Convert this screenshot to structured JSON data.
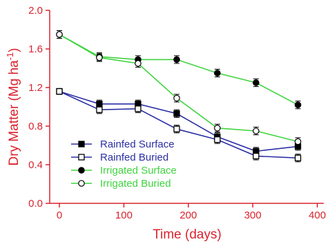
{
  "chart_data": {
    "type": "line",
    "xlabel": "Time (days)",
    "ylabel": "Dry Matter (Mg ha-1)",
    "ylabel_parts": {
      "main": "Dry Matter (Mg ha",
      "sup": "-1",
      "close": ")"
    },
    "xlim": [
      -15,
      410
    ],
    "ylim": [
      0.0,
      2.0
    ],
    "x_ticks": [
      0,
      100,
      200,
      300,
      400
    ],
    "y_ticks": [
      "0.0",
      "0.4",
      "0.8",
      "1.2",
      "1.6",
      "2.0"
    ],
    "axis_color": "#d9232e",
    "legend_position": "lower-left",
    "series": [
      {
        "name": "Rainfed Surface",
        "color": "#2b2fa3",
        "marker": "square",
        "filled": true,
        "x": [
          0,
          62,
          122,
          182,
          245,
          305,
          370
        ],
        "y": [
          1.16,
          1.03,
          1.03,
          0.93,
          0.69,
          0.54,
          0.59
        ],
        "err": [
          0.03,
          0.04,
          0.04,
          0.04,
          0.04,
          0.04,
          0.04
        ]
      },
      {
        "name": "Rainfed Buried",
        "color": "#2b2fa3",
        "marker": "square",
        "filled": false,
        "x": [
          0,
          62,
          122,
          182,
          245,
          305,
          370
        ],
        "y": [
          1.16,
          0.97,
          0.98,
          0.77,
          0.66,
          0.49,
          0.47
        ],
        "err": [
          0.03,
          0.04,
          0.04,
          0.04,
          0.04,
          0.04,
          0.04
        ]
      },
      {
        "name": "Irrigated Surface",
        "color": "#3fd43f",
        "marker": "circle",
        "filled": true,
        "x": [
          0,
          62,
          122,
          182,
          245,
          305,
          370
        ],
        "y": [
          1.75,
          1.52,
          1.49,
          1.49,
          1.35,
          1.25,
          1.02
        ],
        "err": [
          0.04,
          0.04,
          0.04,
          0.04,
          0.04,
          0.04,
          0.04
        ]
      },
      {
        "name": "Irrigated Buried",
        "color": "#3fd43f",
        "marker": "circle",
        "filled": false,
        "x": [
          0,
          62,
          122,
          182,
          245,
          305,
          370
        ],
        "y": [
          1.75,
          1.51,
          1.45,
          1.09,
          0.78,
          0.75,
          0.64
        ],
        "err": [
          0.04,
          0.04,
          0.04,
          0.04,
          0.04,
          0.04,
          0.04
        ]
      }
    ]
  }
}
